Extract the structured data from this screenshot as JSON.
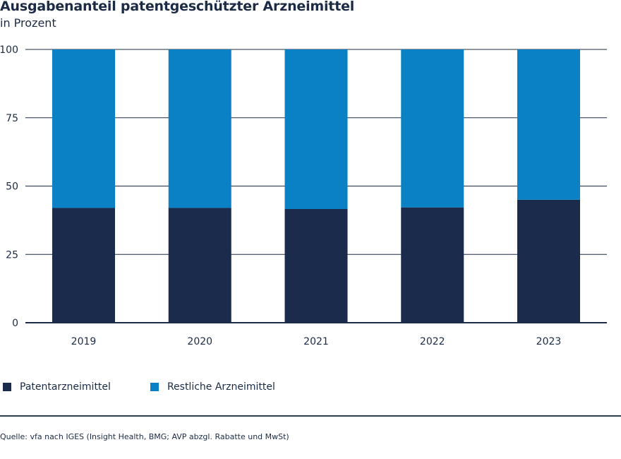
{
  "chart_data": {
    "type": "bar",
    "stacked": true,
    "title": "Ausgabenanteil patentgeschützter Arzneimittel",
    "subtitle": "in Prozent",
    "categories": [
      "2019",
      "2020",
      "2021",
      "2022",
      "2023"
    ],
    "series": [
      {
        "name": "Patentarzneimittel",
        "color": "#1b2b4b",
        "values": [
          42,
          42,
          41.6,
          42.2,
          45
        ]
      },
      {
        "name": "Restliche Arzneimittel",
        "color": "#0a81c4",
        "values": [
          58,
          58,
          58.4,
          57.8,
          55
        ]
      }
    ],
    "ylim": [
      0,
      100
    ],
    "yticks": [
      0,
      25,
      50,
      75,
      100
    ],
    "grid": true,
    "legend_position": "bottom-left",
    "source": "Quelle: vfa nach IGES (Insight Health, BMG; AVP abzgl. Rabatte und MwSt)"
  }
}
